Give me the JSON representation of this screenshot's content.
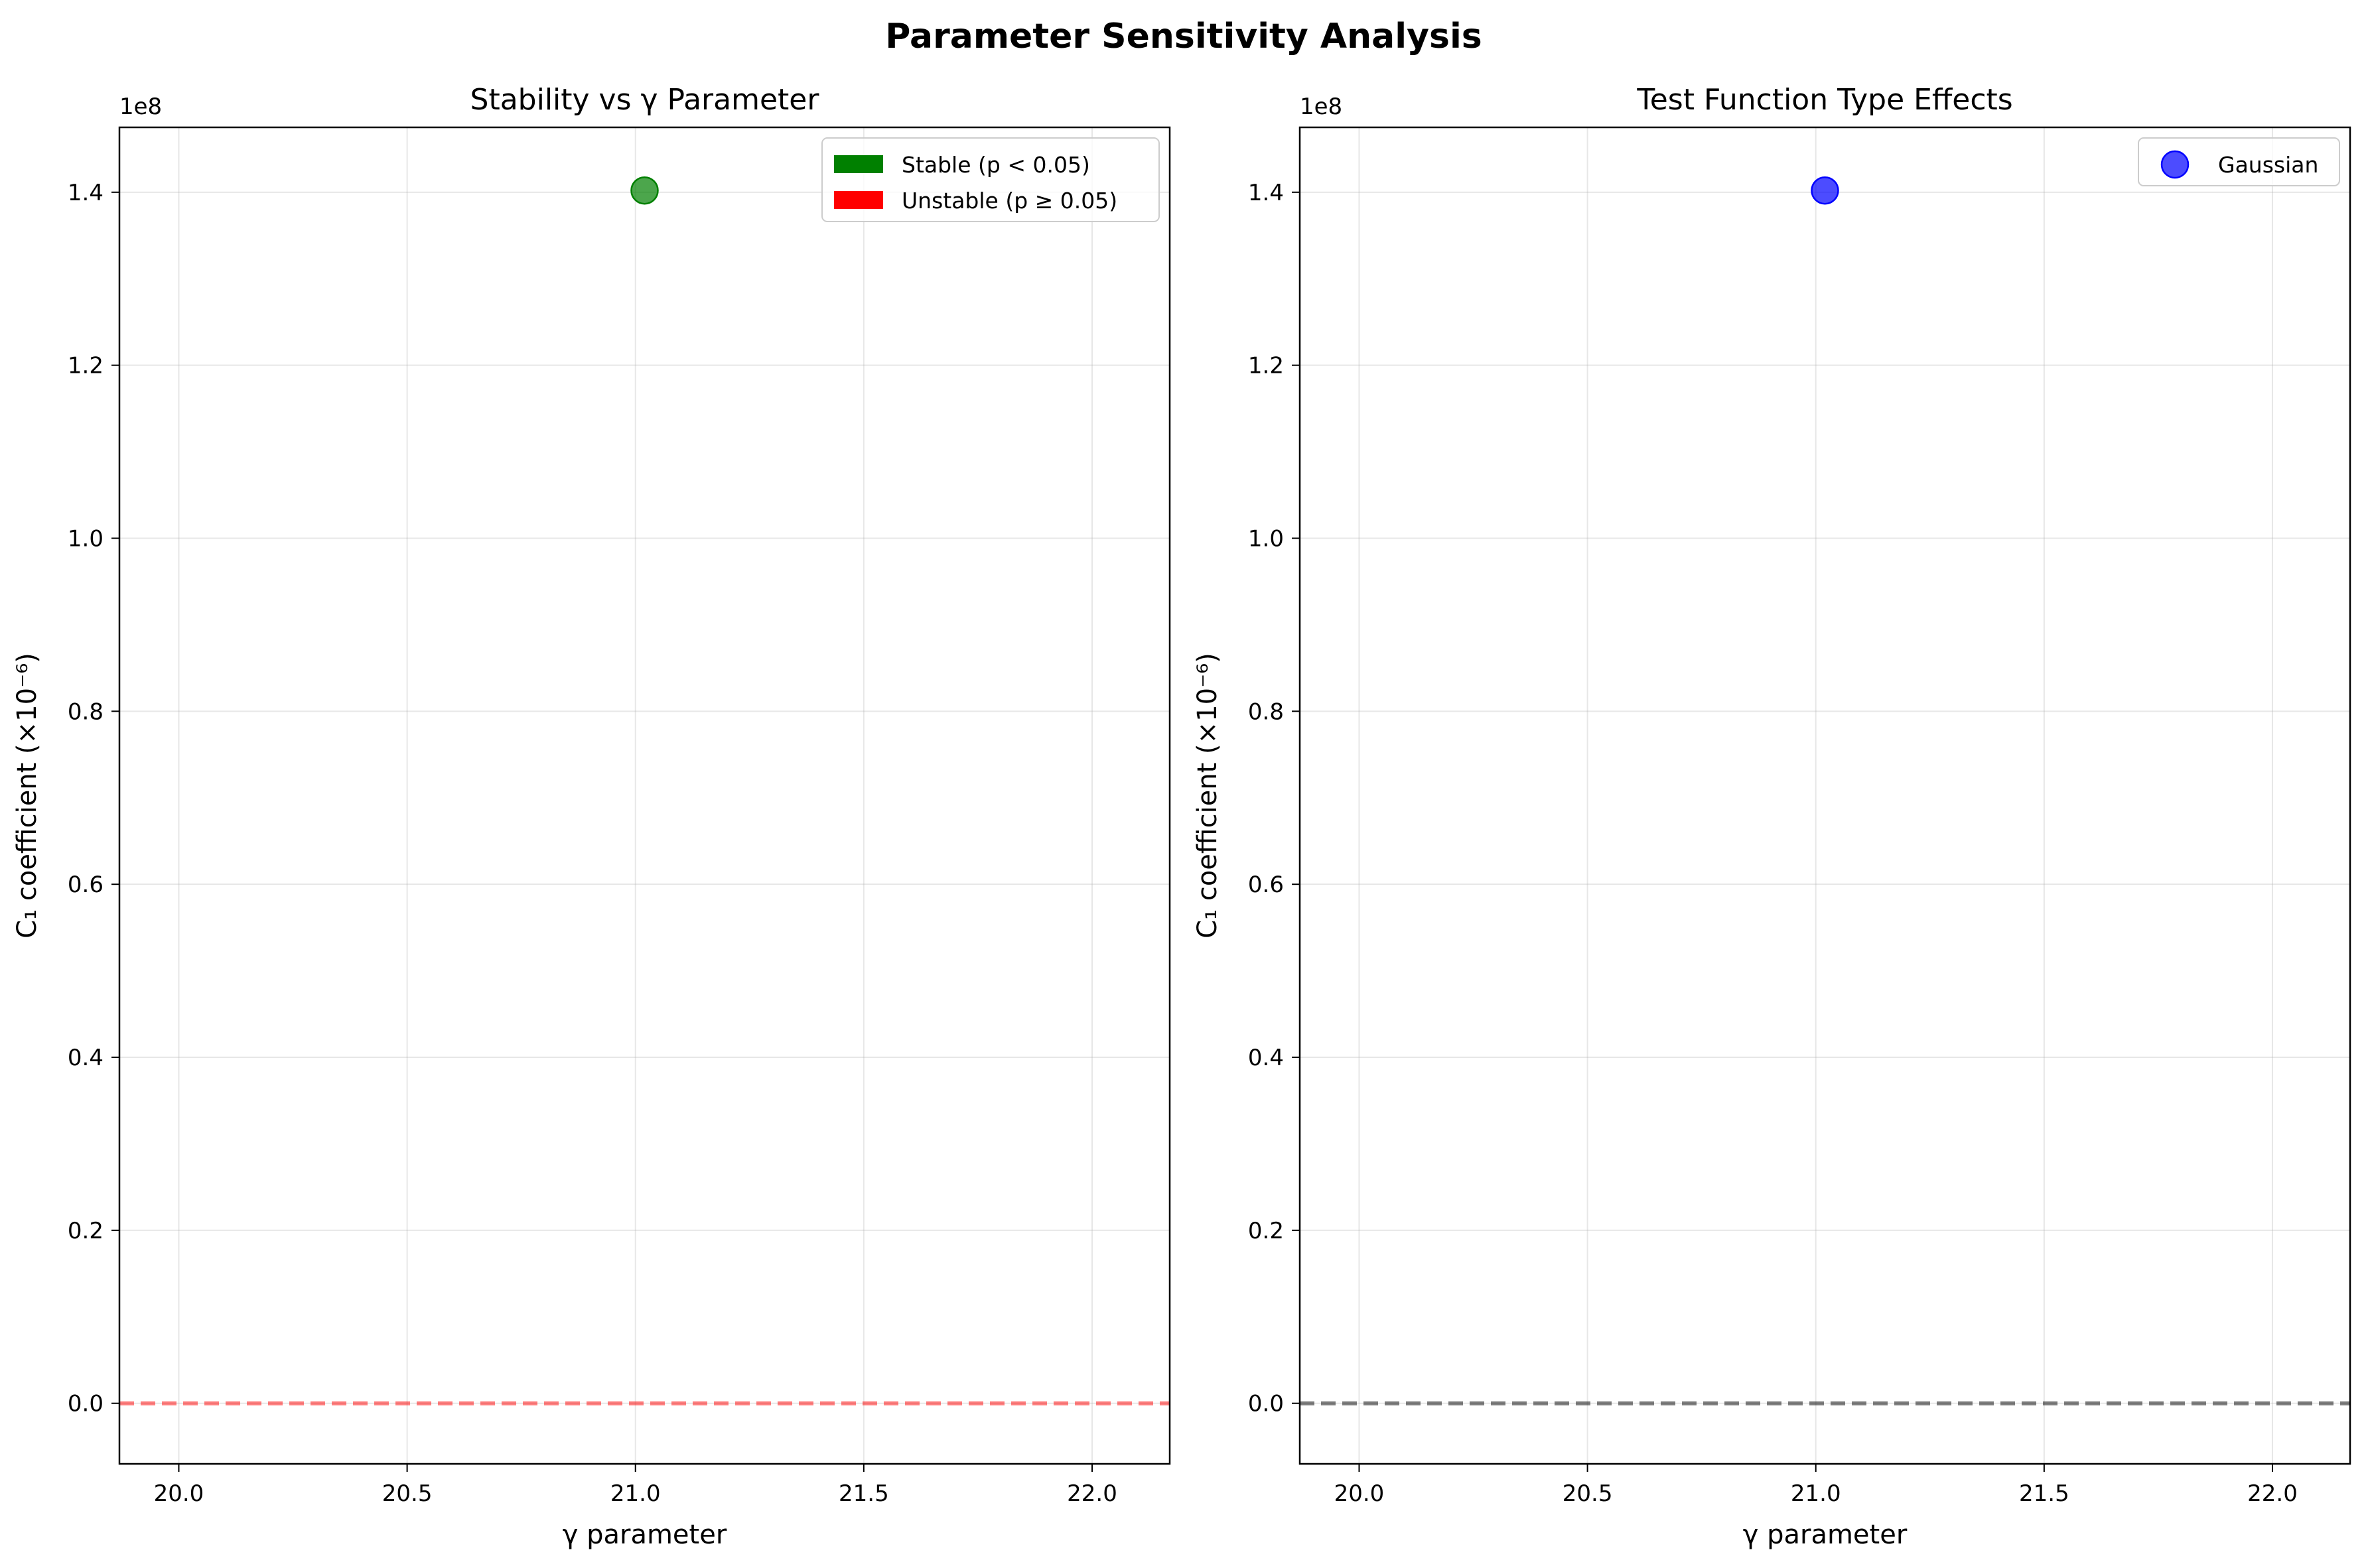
{
  "figure": {
    "suptitle": "Parameter Sensitivity Analysis"
  },
  "chart_data": [
    {
      "type": "scatter",
      "title": "Stability vs γ Parameter",
      "xlabel": "γ parameter",
      "ylabel": "C₁ coefficient (×10⁻⁶)",
      "y_offset_label": "1e8",
      "xlim": [
        19.87,
        22.17
      ],
      "ylim": [
        -0.07,
        1.475
      ],
      "y_scale_factor": 100000000.0,
      "xticks": [
        20.0,
        20.5,
        21.0,
        21.5,
        22.0
      ],
      "xtick_labels": [
        "20.0",
        "20.5",
        "21.0",
        "21.5",
        "22.0"
      ],
      "yticks": [
        0.0,
        0.2,
        0.4,
        0.6,
        0.8,
        1.0,
        1.2,
        1.4
      ],
      "ytick_labels": [
        "0.0",
        "0.2",
        "0.4",
        "0.6",
        "0.8",
        "1.0",
        "1.2",
        "1.4"
      ],
      "grid": true,
      "series": [
        {
          "name": "Stable (p < 0.05)",
          "x": [
            21.02
          ],
          "y": [
            1.402
          ],
          "color": "#008000",
          "alpha": 0.7
        }
      ],
      "legend": {
        "placement": "upper-right",
        "entries": [
          {
            "label": "Stable (p < 0.05)",
            "color": "#008000",
            "marker": "patch"
          },
          {
            "label": "Unstable (p ≥ 0.05)",
            "color": "#ff0000",
            "marker": "patch"
          }
        ]
      },
      "reference_line": {
        "y": 0.0,
        "color": "#ff0000",
        "alpha": 0.5,
        "style": "dashed"
      }
    },
    {
      "type": "scatter",
      "title": "Test Function Type Effects",
      "xlabel": "γ parameter",
      "ylabel": "C₁ coefficient (×10⁻⁶)",
      "y_offset_label": "1e8",
      "xlim": [
        19.87,
        22.17
      ],
      "ylim": [
        -0.07,
        1.475
      ],
      "y_scale_factor": 100000000.0,
      "xticks": [
        20.0,
        20.5,
        21.0,
        21.5,
        22.0
      ],
      "xtick_labels": [
        "20.0",
        "20.5",
        "21.0",
        "21.5",
        "22.0"
      ],
      "yticks": [
        0.0,
        0.2,
        0.4,
        0.6,
        0.8,
        1.0,
        1.2,
        1.4
      ],
      "ytick_labels": [
        "0.0",
        "0.2",
        "0.4",
        "0.6",
        "0.8",
        "1.0",
        "1.2",
        "1.4"
      ],
      "grid": true,
      "series": [
        {
          "name": "Gaussian",
          "x": [
            21.02
          ],
          "y": [
            1.402
          ],
          "color": "#0000ff",
          "alpha": 0.7
        }
      ],
      "legend": {
        "placement": "upper-right",
        "entries": [
          {
            "label": "Gaussian",
            "color": "#0000ff",
            "marker": "circle"
          }
        ]
      },
      "reference_line": {
        "y": 0.0,
        "color": "#000000",
        "alpha": 0.5,
        "style": "dashed"
      }
    }
  ]
}
